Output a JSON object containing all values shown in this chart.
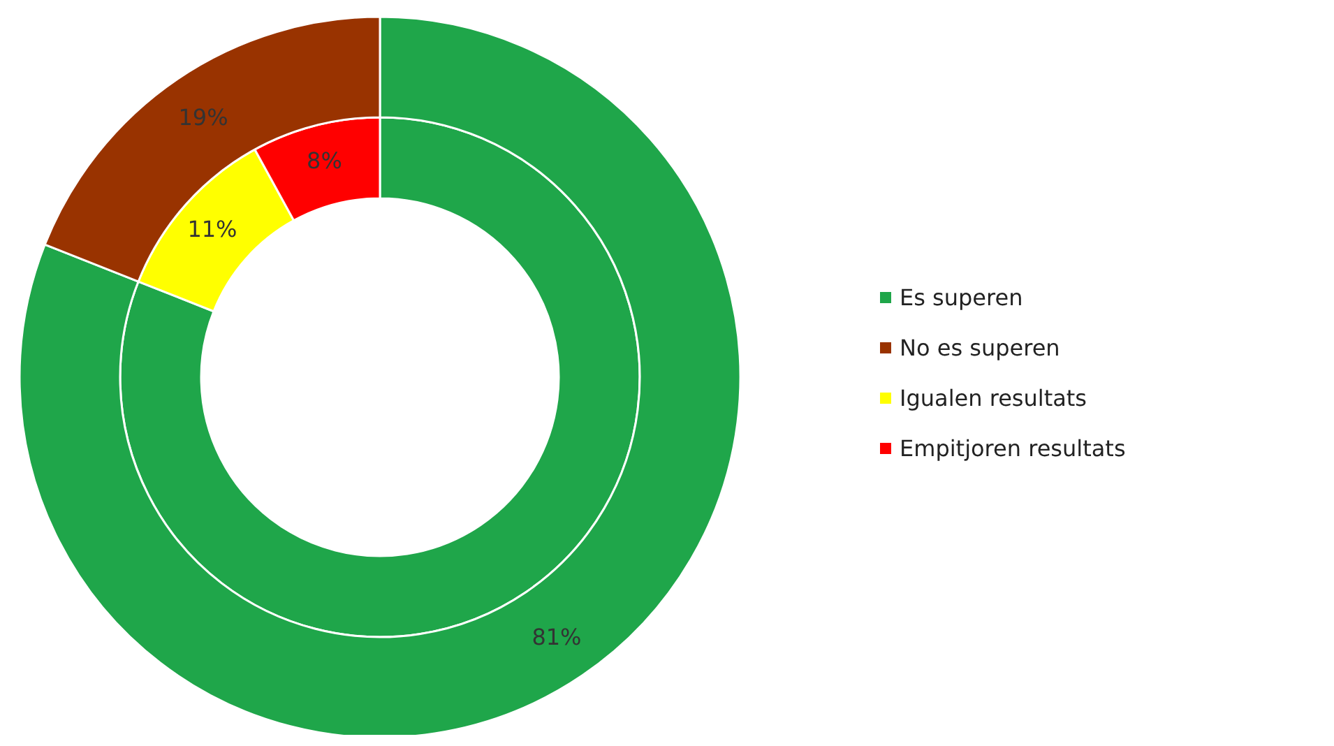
{
  "chart_data": {
    "type": "donut",
    "categories": [
      "Es superen",
      "No es superen",
      "Igualen resultats",
      "Empitjoren resultats"
    ],
    "series": [
      {
        "values": [
          81,
          null,
          11,
          8
        ],
        "colors": [
          "#1fa64a",
          null,
          "#ffff00",
          "#ff0000"
        ],
        "value_labels": [
          null,
          null,
          "11%",
          "8%"
        ]
      },
      {
        "values": [
          81,
          19,
          null,
          null
        ],
        "colors": [
          "#1fa64a",
          "#993300",
          null,
          null
        ],
        "value_labels": [
          "81%",
          "19%",
          null,
          null
        ]
      }
    ],
    "legend": "right"
  }
}
